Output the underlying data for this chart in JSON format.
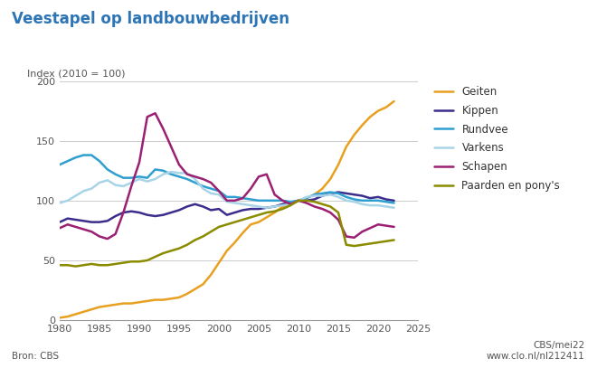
{
  "title": "Veestapel op landbouwbedrijven",
  "ylabel_text": "Index (2010 = 100)",
  "source_left": "Bron: CBS",
  "source_right": "CBS/mei22\nwww.clo.nl/nl212411",
  "xlim": [
    1980,
    2025
  ],
  "ylim": [
    0,
    200
  ],
  "yticks": [
    0,
    50,
    100,
    150,
    200
  ],
  "xticks": [
    1980,
    1985,
    1990,
    1995,
    2000,
    2005,
    2010,
    2015,
    2020,
    2025
  ],
  "title_color": "#2E75B6",
  "background_color": "#ffffff",
  "series": {
    "Geiten": {
      "color": "#E8A020",
      "linewidth": 1.8,
      "data": {
        "1980": 2,
        "1981": 3,
        "1982": 5,
        "1983": 7,
        "1984": 9,
        "1985": 11,
        "1986": 12,
        "1987": 13,
        "1988": 14,
        "1989": 14,
        "1990": 15,
        "1991": 16,
        "1992": 17,
        "1993": 17,
        "1994": 18,
        "1995": 19,
        "1996": 22,
        "1997": 26,
        "1998": 30,
        "1999": 38,
        "2000": 48,
        "2001": 58,
        "2002": 65,
        "2003": 73,
        "2004": 80,
        "2005": 82,
        "2006": 86,
        "2007": 90,
        "2008": 95,
        "2009": 97,
        "2010": 100,
        "2011": 102,
        "2012": 105,
        "2013": 110,
        "2014": 118,
        "2015": 130,
        "2016": 145,
        "2017": 155,
        "2018": 163,
        "2019": 170,
        "2020": 175,
        "2021": 178,
        "2022": 183
      }
    },
    "Kippen": {
      "color": "#3B2D8C",
      "linewidth": 1.8,
      "data": {
        "1980": 82,
        "1981": 85,
        "1982": 84,
        "1983": 83,
        "1984": 82,
        "1985": 82,
        "1986": 83,
        "1987": 87,
        "1988": 90,
        "1989": 91,
        "1990": 90,
        "1991": 88,
        "1992": 87,
        "1993": 88,
        "1994": 90,
        "1995": 92,
        "1996": 95,
        "1997": 97,
        "1998": 95,
        "1999": 92,
        "2000": 93,
        "2001": 88,
        "2002": 90,
        "2003": 92,
        "2004": 93,
        "2005": 93,
        "2006": 94,
        "2007": 95,
        "2008": 97,
        "2009": 98,
        "2010": 100,
        "2011": 100,
        "2012": 101,
        "2013": 104,
        "2014": 106,
        "2015": 107,
        "2016": 106,
        "2017": 105,
        "2018": 104,
        "2019": 102,
        "2020": 103,
        "2021": 101,
        "2022": 100
      }
    },
    "Rundvee": {
      "color": "#2E9FD0",
      "linewidth": 1.8,
      "data": {
        "1980": 130,
        "1981": 133,
        "1982": 136,
        "1983": 138,
        "1984": 138,
        "1985": 133,
        "1986": 126,
        "1987": 122,
        "1988": 119,
        "1989": 119,
        "1990": 120,
        "1991": 119,
        "1992": 126,
        "1993": 125,
        "1994": 122,
        "1995": 120,
        "1996": 118,
        "1997": 115,
        "1998": 112,
        "1999": 110,
        "2000": 108,
        "2001": 103,
        "2002": 103,
        "2003": 102,
        "2004": 101,
        "2005": 100,
        "2006": 100,
        "2007": 100,
        "2008": 100,
        "2009": 99,
        "2010": 100,
        "2011": 102,
        "2012": 105,
        "2013": 106,
        "2014": 107,
        "2015": 106,
        "2016": 103,
        "2017": 101,
        "2018": 100,
        "2019": 100,
        "2020": 100,
        "2021": 99,
        "2022": 98
      }
    },
    "Varkens": {
      "color": "#A8D4E8",
      "linewidth": 1.8,
      "data": {
        "1980": 98,
        "1981": 100,
        "1982": 104,
        "1983": 108,
        "1984": 110,
        "1985": 115,
        "1986": 117,
        "1987": 113,
        "1988": 112,
        "1989": 115,
        "1990": 118,
        "1991": 116,
        "1992": 118,
        "1993": 122,
        "1994": 124,
        "1995": 123,
        "1996": 123,
        "1997": 118,
        "1998": 110,
        "1999": 106,
        "2000": 105,
        "2001": 99,
        "2002": 98,
        "2003": 97,
        "2004": 96,
        "2005": 95,
        "2006": 94,
        "2007": 95,
        "2008": 96,
        "2009": 97,
        "2010": 100,
        "2011": 103,
        "2012": 104,
        "2013": 104,
        "2014": 105,
        "2015": 103,
        "2016": 100,
        "2017": 99,
        "2018": 97,
        "2019": 96,
        "2020": 96,
        "2021": 95,
        "2022": 94
      }
    },
    "Schapen": {
      "color": "#9B2073",
      "linewidth": 1.8,
      "data": {
        "1980": 77,
        "1981": 80,
        "1982": 78,
        "1983": 76,
        "1984": 74,
        "1985": 70,
        "1986": 68,
        "1987": 72,
        "1988": 90,
        "1989": 112,
        "1990": 132,
        "1991": 170,
        "1992": 173,
        "1993": 160,
        "1994": 145,
        "1995": 130,
        "1996": 122,
        "1997": 120,
        "1998": 118,
        "1999": 115,
        "2000": 108,
        "2001": 100,
        "2002": 100,
        "2003": 102,
        "2004": 110,
        "2005": 120,
        "2006": 122,
        "2007": 105,
        "2008": 100,
        "2009": 97,
        "2010": 100,
        "2011": 98,
        "2012": 95,
        "2013": 93,
        "2014": 90,
        "2015": 84,
        "2016": 70,
        "2017": 69,
        "2018": 74,
        "2019": 77,
        "2020": 80,
        "2021": 79,
        "2022": 78
      }
    },
    "Paarden en pony's": {
      "color": "#8B8B00",
      "linewidth": 1.8,
      "data": {
        "1980": 46,
        "1981": 46,
        "1982": 45,
        "1983": 46,
        "1984": 47,
        "1985": 46,
        "1986": 46,
        "1987": 47,
        "1988": 48,
        "1989": 49,
        "1990": 49,
        "1991": 50,
        "1992": 53,
        "1993": 56,
        "1994": 58,
        "1995": 60,
        "1996": 63,
        "1997": 67,
        "1998": 70,
        "1999": 74,
        "2000": 78,
        "2001": 80,
        "2002": 82,
        "2003": 84,
        "2004": 86,
        "2005": 88,
        "2006": 90,
        "2007": 91,
        "2008": 93,
        "2009": 96,
        "2010": 100,
        "2011": 100,
        "2012": 99,
        "2013": 97,
        "2014": 95,
        "2015": 90,
        "2016": 63,
        "2017": 62,
        "2018": 63,
        "2019": 64,
        "2020": 65,
        "2021": 66,
        "2022": 67
      }
    }
  },
  "legend_order": [
    "Geiten",
    "Kippen",
    "Rundvee",
    "Varkens",
    "Schapen",
    "Paarden en pony's"
  ]
}
